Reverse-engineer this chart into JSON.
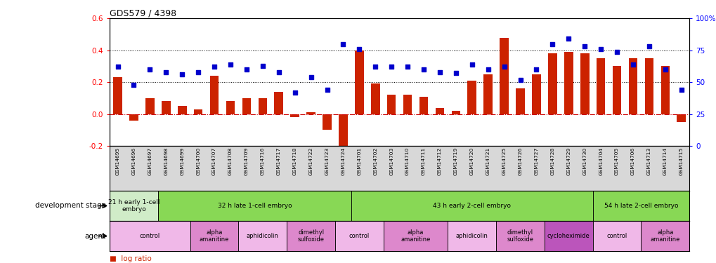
{
  "title": "GDS579 / 4398",
  "samples": [
    "GSM14695",
    "GSM14696",
    "GSM14697",
    "GSM14698",
    "GSM14699",
    "GSM14700",
    "GSM14707",
    "GSM14708",
    "GSM14709",
    "GSM14716",
    "GSM14717",
    "GSM14718",
    "GSM14722",
    "GSM14723",
    "GSM14724",
    "GSM14701",
    "GSM14702",
    "GSM14703",
    "GSM14710",
    "GSM14711",
    "GSM14712",
    "GSM14719",
    "GSM14720",
    "GSM14721",
    "GSM14725",
    "GSM14726",
    "GSM14727",
    "GSM14728",
    "GSM14729",
    "GSM14730",
    "GSM14704",
    "GSM14705",
    "GSM14706",
    "GSM14713",
    "GSM14714",
    "GSM14715"
  ],
  "log_ratio": [
    0.23,
    -0.04,
    0.1,
    0.08,
    0.05,
    0.03,
    0.24,
    0.08,
    0.1,
    0.1,
    0.14,
    -0.02,
    0.01,
    -0.1,
    -0.2,
    0.4,
    0.19,
    0.12,
    0.12,
    0.11,
    0.04,
    0.02,
    0.21,
    0.25,
    0.48,
    0.16,
    0.25,
    0.38,
    0.39,
    0.38,
    0.35,
    0.3,
    0.35,
    0.35,
    0.3,
    -0.05
  ],
  "percentile_rank": [
    62,
    48,
    60,
    58,
    56,
    58,
    62,
    64,
    60,
    63,
    58,
    42,
    54,
    44,
    80,
    76,
    62,
    62,
    62,
    60,
    58,
    57,
    64,
    60,
    62,
    52,
    60,
    80,
    84,
    78,
    76,
    74,
    64,
    78,
    60,
    44
  ],
  "ylim_left": [
    -0.2,
    0.6
  ],
  "ylim_right": [
    0,
    100
  ],
  "yticks_left": [
    -0.2,
    0.0,
    0.2,
    0.4,
    0.6
  ],
  "yticks_right": [
    0,
    25,
    50,
    75,
    100
  ],
  "bar_color": "#cc2200",
  "dot_color": "#0000cc",
  "sample_bg": "#d8d8d8",
  "dev_stages": [
    {
      "label": "21 h early 1-cell\nembryo",
      "start": 0,
      "end": 3,
      "color": "#d0ecc8"
    },
    {
      "label": "32 h late 1-cell embryo",
      "start": 3,
      "end": 15,
      "color": "#88d855"
    },
    {
      "label": "43 h early 2-cell embryo",
      "start": 15,
      "end": 30,
      "color": "#88d855"
    },
    {
      "label": "54 h late 2-cell embryo",
      "start": 30,
      "end": 36,
      "color": "#88d855"
    }
  ],
  "agents": [
    {
      "label": "control",
      "start": 0,
      "end": 5,
      "color": "#f0b8e8"
    },
    {
      "label": "alpha\namanitine",
      "start": 5,
      "end": 8,
      "color": "#dd88cc"
    },
    {
      "label": "aphidicolin",
      "start": 8,
      "end": 11,
      "color": "#f0b8e8"
    },
    {
      "label": "dimethyl\nsulfoxide",
      "start": 11,
      "end": 14,
      "color": "#dd88cc"
    },
    {
      "label": "control",
      "start": 14,
      "end": 17,
      "color": "#f0b8e8"
    },
    {
      "label": "alpha\namanitine",
      "start": 17,
      "end": 21,
      "color": "#dd88cc"
    },
    {
      "label": "aphidicolin",
      "start": 21,
      "end": 24,
      "color": "#f0b8e8"
    },
    {
      "label": "dimethyl\nsulfoxide",
      "start": 24,
      "end": 27,
      "color": "#dd88cc"
    },
    {
      "label": "cycloheximide",
      "start": 27,
      "end": 30,
      "color": "#bb55bb"
    },
    {
      "label": "control",
      "start": 30,
      "end": 33,
      "color": "#f0b8e8"
    },
    {
      "label": "alpha\namanitine",
      "start": 33,
      "end": 36,
      "color": "#dd88cc"
    }
  ]
}
